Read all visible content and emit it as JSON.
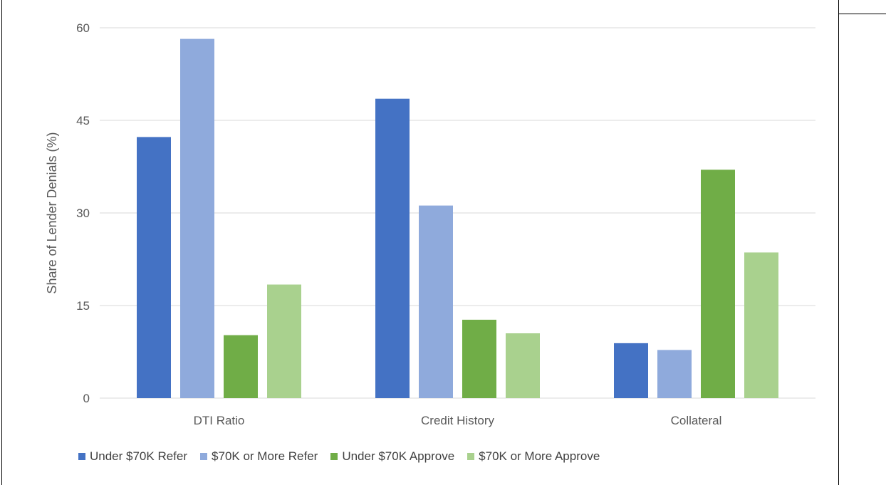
{
  "chart_data": {
    "type": "bar",
    "title": "",
    "xlabel": "",
    "ylabel": "Share of Lender Denials (%)",
    "ylim": [
      0,
      60
    ],
    "yticks": [
      0,
      15,
      30,
      45,
      60
    ],
    "categories": [
      "DTI Ratio",
      "Credit History",
      "Collateral"
    ],
    "series": [
      {
        "name": "Under $70K Refer",
        "color": "#4472c4",
        "values": [
          42.3,
          48.5,
          8.9
        ]
      },
      {
        "name": "$70K or More Refer",
        "color": "#8faadc",
        "values": [
          58.2,
          31.2,
          7.8
        ]
      },
      {
        "name": "Under $70K Approve",
        "color": "#70ad47",
        "values": [
          10.2,
          12.7,
          37.0
        ]
      },
      {
        "name": "$70K or More Approve",
        "color": "#a9d18e",
        "values": [
          18.4,
          10.5,
          23.6
        ]
      }
    ],
    "grid": true,
    "legend_position": "bottom"
  }
}
